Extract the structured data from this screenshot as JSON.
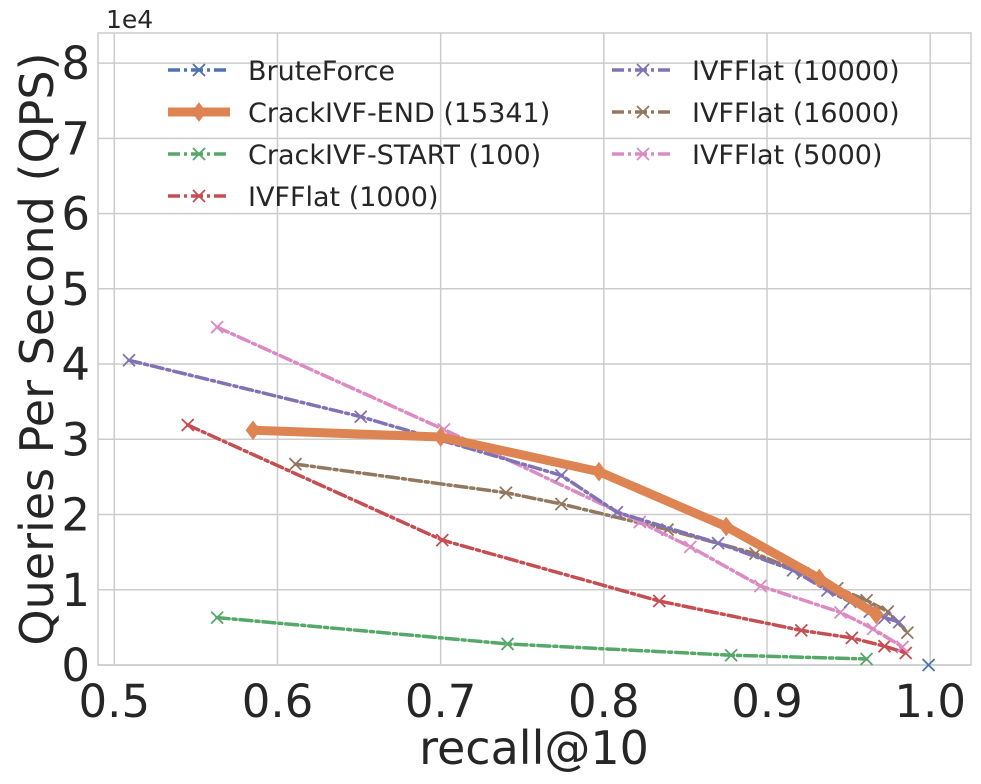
{
  "chart_data": {
    "type": "line",
    "title": "",
    "xlabel": "recall@10",
    "ylabel": "Queries Per Second (QPS)",
    "y_scale_label": "1e4",
    "xlim": [
      0.49,
      1.025
    ],
    "ylim": [
      0,
      8.4
    ],
    "x_ticks": [
      0.5,
      0.6,
      0.7,
      0.8,
      0.9,
      1.0
    ],
    "x_tick_labels": [
      "0.5",
      "0.6",
      "0.7",
      "0.8",
      "0.9",
      "1.0"
    ],
    "y_ticks": [
      0,
      1,
      2,
      3,
      4,
      5,
      6,
      7,
      8
    ],
    "y_tick_labels": [
      "0",
      "1",
      "2",
      "3",
      "4",
      "5",
      "6",
      "7",
      "8"
    ],
    "grid": true,
    "legend_position": "top",
    "legend_columns": 2,
    "series": [
      {
        "name": "BruteForce",
        "color": "#4c72b0",
        "width": 3.5,
        "dash": "12,4,3,4",
        "marker": "x",
        "x": [
          0.999
        ],
        "y": [
          0.0
        ]
      },
      {
        "name": "CrackIVF-END (15341)",
        "color": "#dd8452",
        "width": 9,
        "dash": "",
        "marker": "diamond",
        "x": [
          0.585,
          0.7,
          0.797,
          0.875,
          0.932,
          0.967
        ],
        "y": [
          3.12,
          3.03,
          2.57,
          1.84,
          1.15,
          0.67
        ]
      },
      {
        "name": "CrackIVF-START (100)",
        "color": "#55a868",
        "width": 3.5,
        "dash": "12,4,3,4",
        "marker": "x",
        "x": [
          0.563,
          0.741,
          0.878,
          0.961
        ],
        "y": [
          0.63,
          0.28,
          0.13,
          0.08
        ]
      },
      {
        "name": "IVFFlat (1000)",
        "color": "#c44e52",
        "width": 3.5,
        "dash": "12,4,3,4",
        "marker": "x",
        "x": [
          0.545,
          0.701,
          0.834,
          0.921,
          0.952,
          0.972,
          0.985
        ],
        "y": [
          3.19,
          1.66,
          0.85,
          0.46,
          0.36,
          0.25,
          0.16
        ]
      },
      {
        "name": "IVFFlat (10000)",
        "color": "#8172b3",
        "width": 3.5,
        "dash": "12,4,3,4",
        "marker": "x",
        "x": [
          0.509,
          0.651,
          0.774,
          0.808,
          0.87,
          0.916,
          0.937,
          0.951,
          0.963,
          0.972,
          0.981
        ],
        "y": [
          4.05,
          3.3,
          2.52,
          2.03,
          1.62,
          1.26,
          0.99,
          0.84,
          0.71,
          0.63,
          0.57
        ]
      },
      {
        "name": "IVFFlat (16000)",
        "color": "#937860",
        "width": 3.5,
        "dash": "12,4,3,4",
        "marker": "x",
        "x": [
          0.611,
          0.74,
          0.774,
          0.839,
          0.893,
          0.922,
          0.943,
          0.961,
          0.974,
          0.986
        ],
        "y": [
          2.67,
          2.29,
          2.14,
          1.8,
          1.48,
          1.22,
          1.02,
          0.86,
          0.71,
          0.43
        ]
      },
      {
        "name": "IVFFlat (5000)",
        "color": "#da8bc3",
        "width": 3.5,
        "dash": "12,4,3,4",
        "marker": "x",
        "x": [
          0.563,
          0.702,
          0.822,
          0.853,
          0.896,
          0.945,
          0.965,
          0.983
        ],
        "y": [
          4.49,
          3.13,
          1.9,
          1.57,
          1.05,
          0.7,
          0.48,
          0.24
        ]
      }
    ]
  }
}
